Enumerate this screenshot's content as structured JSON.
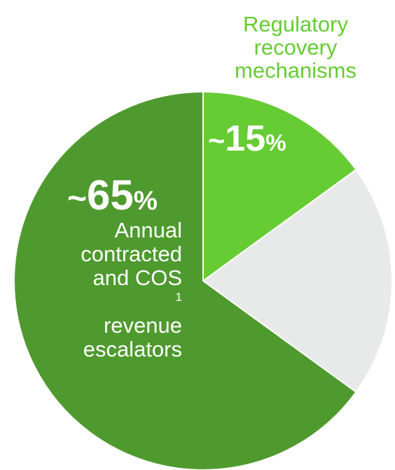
{
  "chart_data": {
    "type": "pie",
    "slices": [
      {
        "name": "Regulatory recovery mechanisms",
        "value": 15,
        "label": "~15%",
        "color": "#66cc33"
      },
      {
        "name": "",
        "value": 20,
        "label": "",
        "color": "#e8e9e9"
      },
      {
        "name": "Annual contracted and COS1 revenue escalators",
        "value": 65,
        "label": "~65%",
        "color": "#4f9a2e"
      }
    ],
    "title": "",
    "legend": "none"
  },
  "labels": {
    "regulatory": {
      "line1": "Regulatory",
      "line2": "recovery",
      "line3": "mechanisms"
    },
    "small_pct": {
      "tilde": "~",
      "value": "15",
      "percent": "%"
    },
    "large_pct": {
      "tilde": "~",
      "value": "65",
      "percent": "%"
    },
    "annual": {
      "line1": "Annual",
      "line2": "contracted",
      "line3": "and COS",
      "line3_sup": "1",
      "line4": "revenue",
      "line5": "escalators"
    }
  }
}
